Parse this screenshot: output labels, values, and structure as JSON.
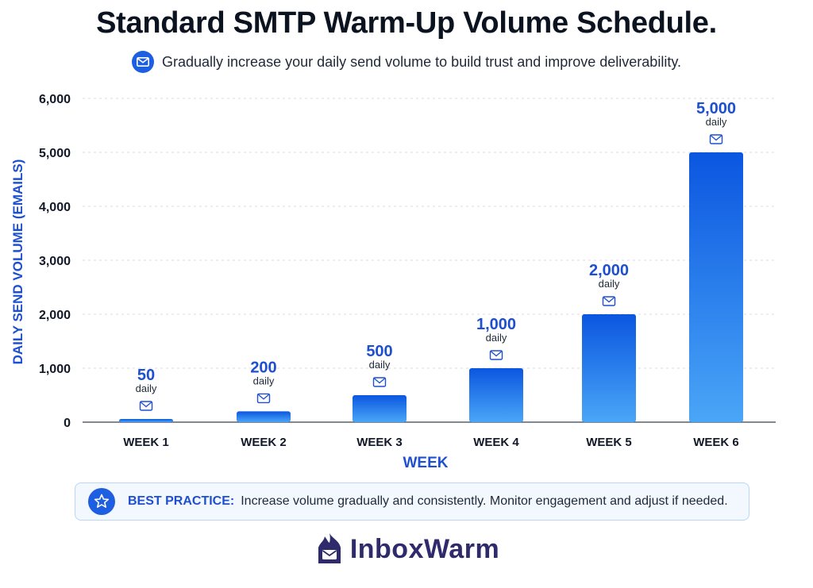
{
  "title": "Standard SMTP Warm-Up Volume Schedule.",
  "subtitle": "Gradually increase your daily send volume to build trust and improve deliverability.",
  "best_practice": {
    "label": "BEST PRACTICE:",
    "text": "Increase volume gradually and consistently. Monitor engagement and adjust if needed."
  },
  "brand": {
    "name": "InboxWarm"
  },
  "colors": {
    "accent": "#1d5fe0",
    "bar_top": "#0b56e0",
    "bar_bottom": "#4aa6f7",
    "axis_label": "#1d4fd0",
    "navy": "#2e2a6b"
  },
  "chart_data": {
    "type": "bar",
    "categories": [
      "WEEK 1",
      "WEEK 2",
      "WEEK 3",
      "WEEK 4",
      "WEEK 5",
      "WEEK 6"
    ],
    "values": [
      50,
      200,
      500,
      1000,
      2000,
      5000
    ],
    "value_labels": [
      "50",
      "200",
      "500",
      "1,000",
      "2,000",
      "5,000"
    ],
    "value_sublabel": "daily",
    "xlabel": "WEEK",
    "ylabel": "DAILY SEND VOLUME (EMAILS)",
    "ylim": [
      0,
      6000
    ],
    "yticks": [
      0,
      1000,
      2000,
      3000,
      4000,
      5000,
      6000
    ],
    "ytick_labels": [
      "0",
      "1,000",
      "2,000",
      "3,000",
      "4,000",
      "5,000",
      "6,000"
    ],
    "grid": true
  }
}
